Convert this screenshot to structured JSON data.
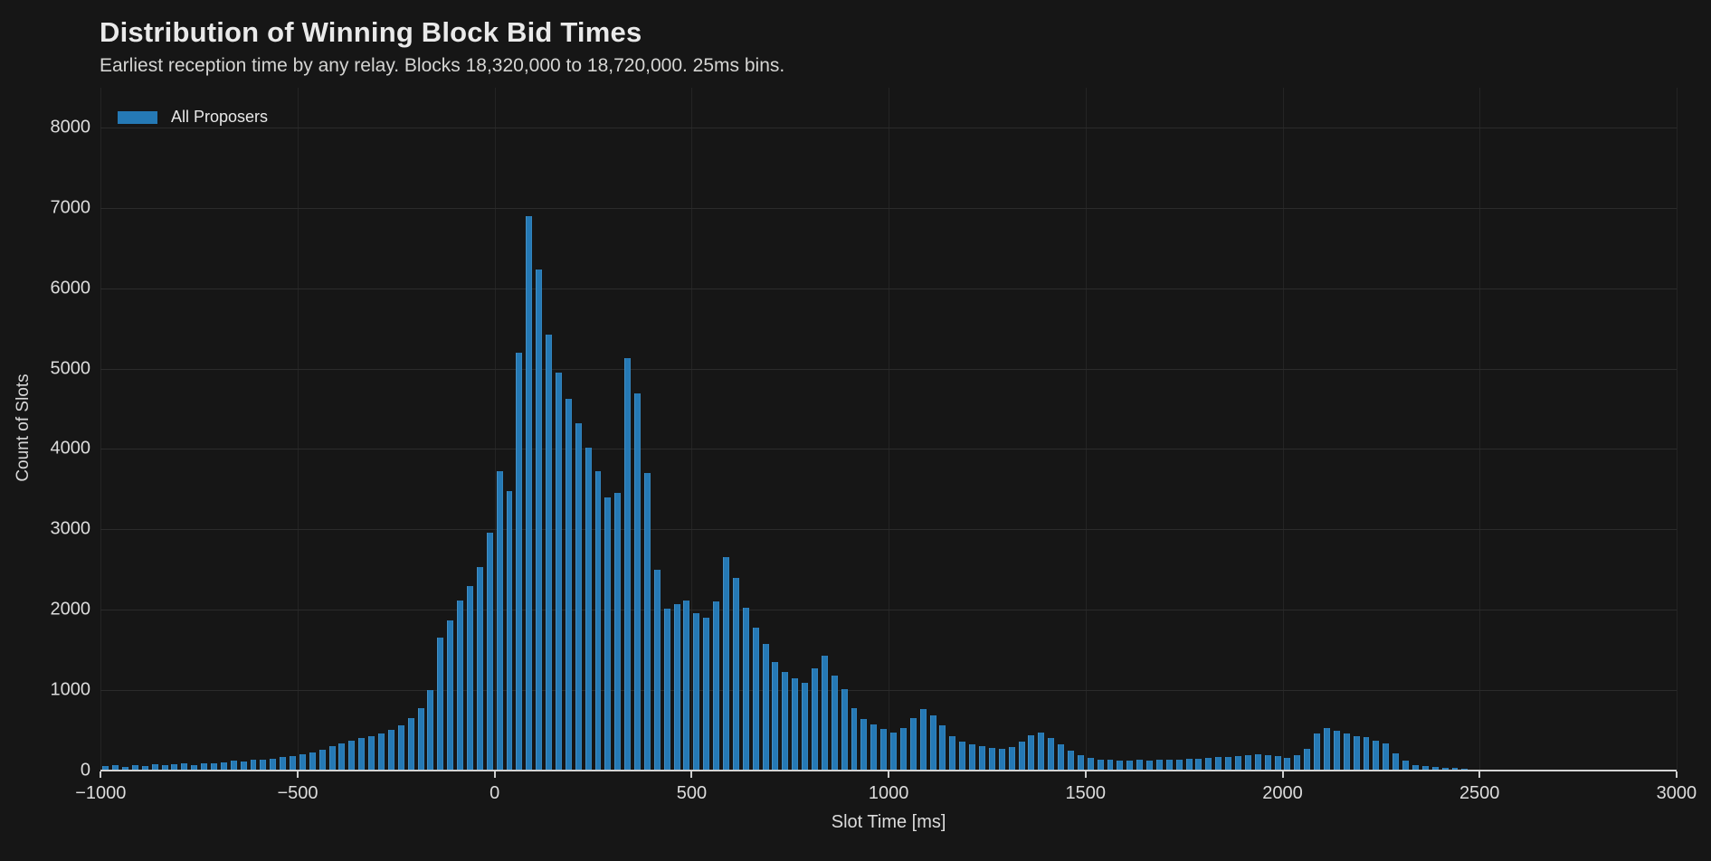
{
  "header": {
    "title": "Distribution of Winning Block Bid Times",
    "subtitle": "Earliest reception time by any relay. Blocks 18,320,000 to 18,720,000. 25ms bins."
  },
  "legend": {
    "label": "All Proposers",
    "swatch_color": "#2579b5"
  },
  "axes": {
    "x": {
      "label": "Slot Time [ms]",
      "tick_values": [
        -1000,
        -500,
        0,
        500,
        1000,
        1500,
        2000,
        2500,
        3000
      ],
      "tick_labels": [
        "−1000",
        "−500",
        "0",
        "500",
        "1000",
        "1500",
        "2000",
        "2500",
        "3000"
      ]
    },
    "y": {
      "label": "Count of Slots",
      "tick_values": [
        0,
        1000,
        2000,
        3000,
        4000,
        5000,
        6000,
        7000,
        8000
      ],
      "tick_labels": [
        "0",
        "1000",
        "2000",
        "3000",
        "4000",
        "5000",
        "6000",
        "7000",
        "8000"
      ]
    }
  },
  "colors": {
    "background": "#161616",
    "bar": "#2579b5",
    "grid": "#2b2b2b",
    "axis_line": "#d4d4d4",
    "text": "#dcdcdc"
  },
  "chart_data": {
    "type": "bar",
    "subtype": "histogram",
    "title": "Distribution of Winning Block Bid Times",
    "subtitle": "Earliest reception time by any relay. Blocks 18,320,000 to 18,720,000. 25ms bins.",
    "xlabel": "Slot Time [ms]",
    "ylabel": "Count of Slots",
    "xlim": [
      -1000,
      3000
    ],
    "ylim": [
      0,
      8500
    ],
    "grid": true,
    "legend_position": "upper-left",
    "bin_width_ms": 25,
    "first_bin_start_ms": -1000,
    "series": [
      {
        "name": "All Proposers",
        "color": "#2579b5",
        "values": [
          55,
          65,
          50,
          70,
          60,
          75,
          65,
          80,
          85,
          70,
          90,
          95,
          105,
          120,
          110,
          130,
          140,
          150,
          165,
          175,
          200,
          230,
          260,
          300,
          340,
          370,
          400,
          430,
          460,
          505,
          560,
          650,
          780,
          1000,
          1650,
          1870,
          2120,
          2290,
          2530,
          2960,
          3720,
          3480,
          5200,
          6900,
          6230,
          5420,
          4950,
          4620,
          4320,
          4020,
          3720,
          3400,
          3450,
          5130,
          4690,
          3700,
          2500,
          2010,
          2070,
          2120,
          1960,
          1900,
          2100,
          2660,
          2400,
          2030,
          1780,
          1580,
          1350,
          1230,
          1150,
          1090,
          1270,
          1430,
          1180,
          1010,
          780,
          640,
          570,
          520,
          470,
          530,
          650,
          770,
          690,
          560,
          430,
          365,
          330,
          300,
          280,
          270,
          290,
          360,
          440,
          470,
          400,
          330,
          250,
          190,
          160,
          140,
          130,
          120,
          125,
          130,
          120,
          135,
          130,
          140,
          145,
          150,
          155,
          165,
          170,
          180,
          190,
          200,
          195,
          185,
          160,
          190,
          270,
          460,
          530,
          490,
          460,
          430,
          420,
          370,
          340,
          210,
          120,
          70,
          55,
          45,
          35,
          30,
          25,
          15,
          5
        ]
      }
    ]
  }
}
